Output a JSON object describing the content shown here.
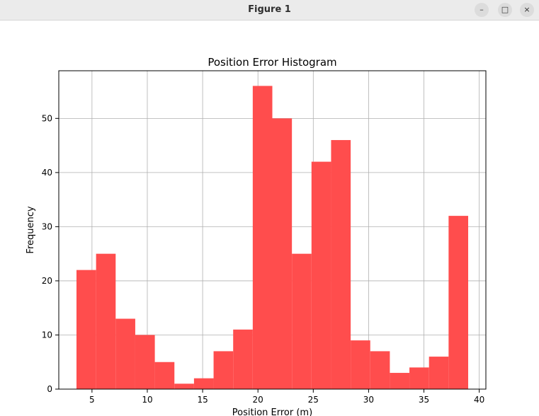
{
  "window": {
    "title": "Figure 1",
    "buttons": {
      "minimize": "–",
      "maximize": "□",
      "close": "×"
    }
  },
  "colors": {
    "bar": "#ff4d4d",
    "grid": "#b0b0b0",
    "axis": "#000000",
    "titlebar": "#ebebeb"
  },
  "chart_data": {
    "type": "bar",
    "title": "Position Error Histogram",
    "xlabel": "Position Error (m)",
    "ylabel": "Frequency",
    "xlim": [
      2.0,
      40.6
    ],
    "ylim": [
      0,
      58.8
    ],
    "xticks": [
      5,
      10,
      15,
      20,
      25,
      30,
      35,
      40
    ],
    "yticks": [
      0,
      10,
      20,
      30,
      40,
      50
    ],
    "grid": true,
    "bin_edges": [
      3.6,
      5.37,
      7.14,
      8.91,
      10.68,
      12.45,
      14.22,
      15.99,
      17.76,
      19.53,
      21.3,
      23.07,
      24.84,
      26.61,
      28.38,
      30.15,
      31.92,
      33.69,
      35.46,
      37.23,
      39.0
    ],
    "values": [
      22,
      25,
      13,
      10,
      5,
      1,
      2,
      7,
      11,
      56,
      50,
      25,
      42,
      46,
      9,
      7,
      3,
      4,
      6,
      32
    ]
  }
}
